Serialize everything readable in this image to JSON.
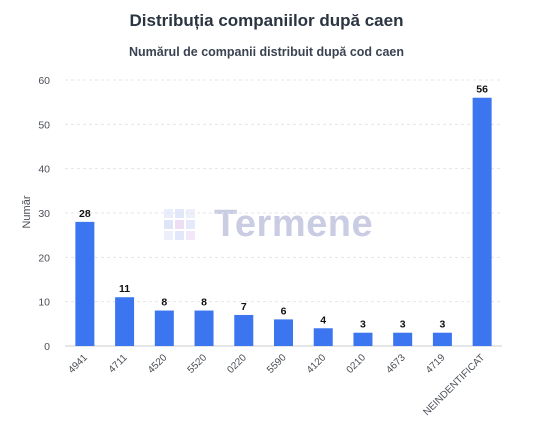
{
  "chart_data": {
    "type": "bar",
    "title": "Distribuția companiilor după caen",
    "subtitle": "Numărul de companii distribuit după cod caen",
    "xlabel": "",
    "ylabel": "Număr",
    "categories": [
      "4941",
      "4711",
      "4520",
      "5520",
      "0220",
      "5590",
      "4120",
      "0210",
      "4673",
      "4719",
      "NEINDENTIFICAT"
    ],
    "values": [
      28,
      11,
      8,
      8,
      7,
      6,
      4,
      3,
      3,
      3,
      56
    ],
    "ylim": [
      0,
      60
    ],
    "yticks": [
      0,
      10,
      20,
      30,
      40,
      50,
      60
    ],
    "grid": true,
    "bar_color": "#3b76f0",
    "data_labels": true
  },
  "watermark": {
    "text": "Termene",
    "icon": "cube-logo-icon"
  }
}
